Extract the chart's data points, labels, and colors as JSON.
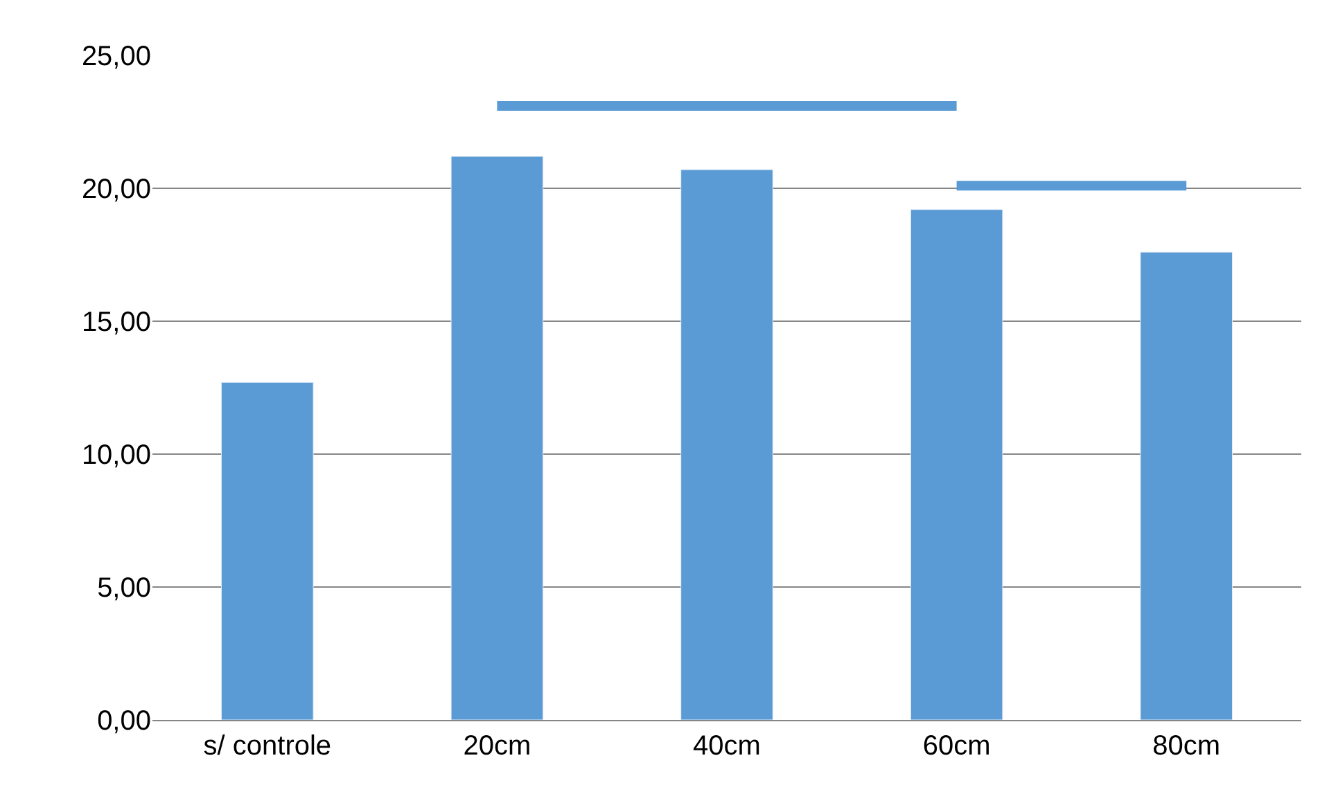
{
  "chart_data": {
    "type": "bar",
    "categories": [
      "s/ controle",
      "20cm",
      "40cm",
      "60cm",
      "80cm"
    ],
    "series": [
      {
        "color": "#5b9bd5",
        "values": [
          12.7,
          21.2,
          20.7,
          19.2,
          17.6
        ]
      },
      {
        "type": "line",
        "color": "#5b9bd5",
        "values": [
          null,
          23.1,
          23.1,
          23.1,
          null
        ]
      },
      {
        "type": "line",
        "color": "#5b9bd5",
        "values": [
          null,
          null,
          null,
          20.1,
          20.1
        ]
      }
    ],
    "ylim": [
      0,
      25
    ],
    "yticks": [
      {
        "value": 0,
        "label": "0,00"
      },
      {
        "value": 5,
        "label": "5,00"
      },
      {
        "value": 10,
        "label": "10,00"
      },
      {
        "value": 15,
        "label": "15,00"
      },
      {
        "value": 20,
        "label": "20,00"
      },
      {
        "value": 25,
        "label": "25,00"
      }
    ],
    "grid": "y",
    "marker": "none",
    "line_style": "solid"
  }
}
